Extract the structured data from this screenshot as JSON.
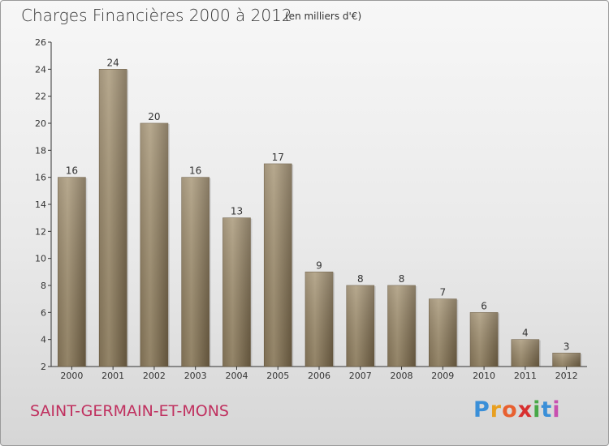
{
  "header": {
    "title": "Charges Financières 2000 à 2012",
    "subtitle": "(en milliers d'€)"
  },
  "footer": {
    "commune": "SAINT-GERMAIN-ET-MONS",
    "logo_letters": [
      "P",
      "r",
      "o",
      "x",
      "i",
      "t",
      "i"
    ],
    "logo_colors": [
      "#3a8fd8",
      "#e8a020",
      "#e86030",
      "#d83030",
      "#48a848",
      "#3a8fd8",
      "#c850b0"
    ]
  },
  "colors": {
    "bar_dark": "#7a6a4e",
    "bar_light": "#a79676",
    "axis": "#333333"
  },
  "chart_data": {
    "type": "bar",
    "title": "Charges Financières 2000 à 2012",
    "subtitle": "(en milliers d'€)",
    "categories": [
      "2000",
      "2001",
      "2002",
      "2003",
      "2004",
      "2005",
      "2006",
      "2007",
      "2008",
      "2009",
      "2010",
      "2011",
      "2012"
    ],
    "values": [
      16,
      24,
      20,
      16,
      13,
      17,
      9,
      8,
      8,
      7,
      6,
      4,
      3
    ],
    "ylim": [
      2,
      26
    ],
    "yticks": [
      2,
      4,
      6,
      8,
      10,
      12,
      14,
      16,
      18,
      20,
      22,
      24,
      26
    ],
    "grid": false,
    "legend": "none"
  }
}
